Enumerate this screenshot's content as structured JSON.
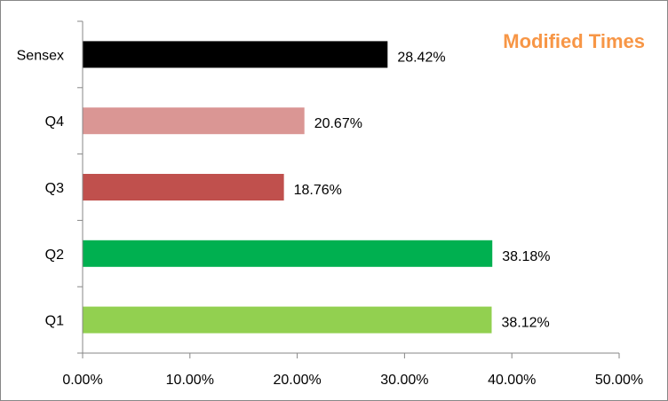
{
  "chart_data": {
    "type": "bar",
    "orientation": "horizontal",
    "title": "Modified Times",
    "title_color": "#F79646",
    "categories": [
      "Sensex",
      "Q4",
      "Q3",
      "Q2",
      "Q1"
    ],
    "values": [
      28.42,
      20.67,
      18.76,
      38.18,
      38.12
    ],
    "value_labels": [
      "28.42%",
      "20.67%",
      "18.76%",
      "38.18%",
      "38.12%"
    ],
    "bar_colors": [
      "#000000",
      "#DA9694",
      "#C0504D",
      "#00B050",
      "#92D050"
    ],
    "xlim": [
      0,
      50
    ],
    "x_ticks": [
      "0.00%",
      "10.00%",
      "20.00%",
      "30.00%",
      "40.00%",
      "50.00%"
    ],
    "xlabel": "",
    "ylabel": "",
    "grid": false,
    "legend": "none",
    "axis_color": "#878787"
  }
}
